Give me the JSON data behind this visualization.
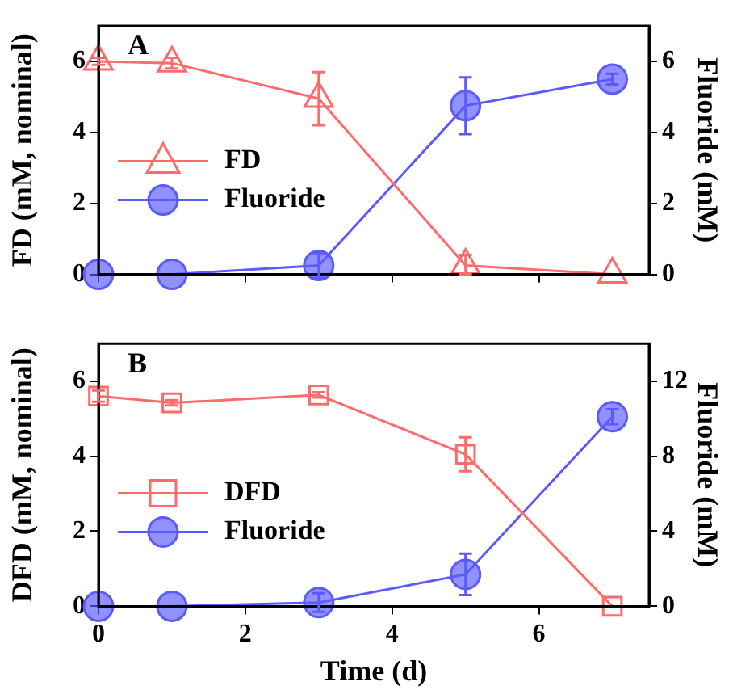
{
  "chart_data": [
    {
      "type": "line",
      "annotations": [
        "A"
      ],
      "ylabel": "FD (mM, nominal)",
      "y2label": "Fluoride (mM)",
      "xlim": [
        0,
        7.5
      ],
      "xticks": [
        0,
        2,
        4,
        6
      ],
      "ylim": [
        0,
        7
      ],
      "yticks": [
        0,
        2,
        4,
        6
      ],
      "y2lim": [
        0,
        7
      ],
      "y2ticks": [
        0,
        2,
        4,
        6
      ],
      "tick_labels": "y",
      "legend": "bottom left",
      "series": [
        {
          "name": "FD",
          "color": "#ff6b6b",
          "marker": "triangle",
          "x": [
            0,
            1,
            3,
            5,
            7
          ],
          "values": [
            6.0,
            5.95,
            4.95,
            0.25,
            0.0
          ],
          "errors": [
            0.1,
            0.15,
            0.75,
            [
              0,
              0.55
            ],
            null
          ]
        },
        {
          "name": "Fluoride",
          "color": "#5a5aff",
          "marker": "circle",
          "axis": "y2",
          "x": [
            0,
            1,
            3,
            5,
            7
          ],
          "values": [
            0,
            0,
            0.25,
            4.75,
            5.5
          ],
          "errors": [
            null,
            null,
            0.35,
            0.8,
            0.15
          ]
        }
      ]
    },
    {
      "type": "line",
      "annotations": [
        "B"
      ],
      "xlabel": "Time (d)",
      "ylabel": "DFD (mM, nominal)",
      "y2label": "Fluoride (mM)",
      "xlim": [
        0,
        7.5
      ],
      "xticks": [
        0,
        2,
        4,
        6
      ],
      "ylim": [
        0,
        7
      ],
      "yticks": [
        0,
        2,
        4,
        6
      ],
      "y2lim": [
        0,
        14
      ],
      "y2ticks": [
        0,
        4,
        8,
        12
      ],
      "legend": "bottom left",
      "series": [
        {
          "name": "DFD",
          "color": "#ff6b6b",
          "marker": "square",
          "x": [
            0,
            1,
            3,
            5,
            7
          ],
          "values": [
            5.6,
            5.42,
            5.63,
            4.05,
            0
          ],
          "errors": [
            0.15,
            0.07,
            0.07,
            0.45,
            null
          ]
        },
        {
          "name": "Fluoride",
          "color": "#5a5aff",
          "marker": "circle",
          "axis": "y2",
          "x": [
            0,
            1,
            3,
            5,
            7
          ],
          "values": [
            0,
            0,
            0.2,
            1.7,
            10.1
          ],
          "errors": [
            null,
            null,
            0.5,
            1.1,
            0.4
          ]
        }
      ]
    }
  ]
}
